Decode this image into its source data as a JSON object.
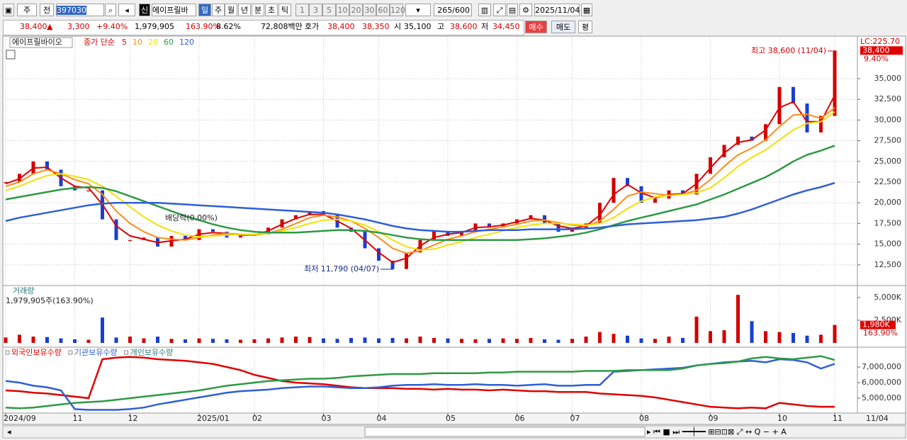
{
  "toolbar": {
    "market": "주",
    "mode": "전",
    "code": "397030",
    "name": "에이프릴바",
    "credit": "신",
    "periods": [
      "일",
      "주",
      "월",
      "년",
      "분",
      "초",
      "틱"
    ],
    "intervals": [
      "1",
      "3",
      "5",
      "10",
      "20",
      "30",
      "60",
      "120"
    ],
    "count": "265",
    "count_max": "/600",
    "date": "2025/11/04"
  },
  "quote": {
    "price": "38,400",
    "change": "3,300",
    "change_pct": "+9.40%",
    "volume": "1,979,905",
    "volume_ratio": "163.90%",
    "turnover": "8.62%",
    "trade_value": "72,808백만",
    "ask_label": "호가",
    "ask": "38,400",
    "bid": "38,350",
    "open_label": "시",
    "open": "35,100",
    "high_label": "고",
    "high": "38,600",
    "low_label": "저",
    "low": "34,450",
    "buy": "매수",
    "sell": "매도",
    "avg": "평"
  },
  "chart_data": [
    {
      "type": "line",
      "legend_title": "종가 단순",
      "grid": true,
      "categories": [
        "2024/09",
        null,
        null,
        null,
        null,
        "11",
        null,
        null,
        null,
        "12",
        null,
        null,
        null,
        null,
        "2025/01",
        null,
        null,
        null,
        "02",
        null,
        null,
        null,
        null,
        "03",
        null,
        null,
        null,
        "04",
        null,
        null,
        null,
        null,
        "05",
        null,
        null,
        null,
        null,
        "06",
        null,
        null,
        null,
        "07",
        null,
        null,
        null,
        null,
        "08",
        null,
        null,
        null,
        null,
        "09",
        null,
        null,
        null,
        null,
        "10",
        null,
        null,
        null,
        "11"
      ],
      "current_date": "11/04",
      "ylim": [
        10000,
        39540
      ],
      "yticks": [
        {
          "value": 12500,
          "label": "12,500"
        },
        {
          "value": 15000,
          "label": "15,000"
        },
        {
          "value": 17500,
          "label": "17,500"
        },
        {
          "value": 20000,
          "label": "20,000"
        },
        {
          "value": 22500,
          "label": "22,500"
        },
        {
          "value": 25000,
          "label": "25,000"
        },
        {
          "value": 27500,
          "label": "27,500"
        },
        {
          "value": 30000,
          "label": "30,000"
        },
        {
          "value": 32500,
          "label": "32,500"
        },
        {
          "value": 35000,
          "label": "35,000"
        }
      ],
      "series": [
        {
          "name": "에이프릴바이오",
          "kind": "candle",
          "color": "#d40000",
          "down_color": "#1a3fd0",
          "values": [
            22500,
            23500,
            25000,
            24000,
            22000,
            21500,
            21500,
            18000,
            15500,
            15500,
            15800,
            14700,
            16000,
            15500,
            16800,
            16500,
            15800,
            16000,
            16200,
            17000,
            18000,
            18500,
            19000,
            18500,
            17000,
            16500,
            14500,
            13000,
            12000,
            14000,
            15500,
            16500,
            16000,
            16500,
            17500,
            17000,
            17500,
            18000,
            18500,
            17500,
            16500,
            17000,
            17500,
            20000,
            23000,
            22000,
            20000,
            20500,
            21500,
            21000,
            23500,
            25500,
            27000,
            28000,
            27500,
            29500,
            34000,
            32000,
            28500,
            30500,
            38400
          ]
        },
        {
          "name": "5",
          "color": "#e00000",
          "values": [
            22300,
            22900,
            24200,
            24300,
            23000,
            22000,
            21800,
            19800,
            17200,
            16000,
            15600,
            15200,
            15400,
            15600,
            16200,
            16400,
            16300,
            16100,
            16100,
            16600,
            17400,
            18100,
            18600,
            18600,
            17800,
            16900,
            15500,
            14000,
            12800,
            13300,
            14800,
            15800,
            16200,
            16400,
            17000,
            17100,
            17300,
            17700,
            18100,
            17900,
            17200,
            16900,
            17200,
            18500,
            21000,
            22200,
            21200,
            20600,
            21000,
            21100,
            22300,
            24200,
            26000,
            27300,
            27600,
            28800,
            31500,
            32200,
            29800,
            29800,
            33000
          ]
        },
        {
          "name": "10",
          "color": "#ff8c1a",
          "values": [
            22000,
            22500,
            23500,
            24000,
            23500,
            22800,
            22300,
            21000,
            19000,
            17500,
            16500,
            15800,
            15600,
            15500,
            15800,
            16100,
            16300,
            16200,
            16100,
            16300,
            16800,
            17500,
            18200,
            18500,
            18300,
            17800,
            16900,
            15800,
            14500,
            13900,
            14200,
            14900,
            15600,
            16000,
            16500,
            16800,
            17100,
            17400,
            17800,
            17900,
            17600,
            17300,
            17200,
            17800,
            19200,
            20800,
            21300,
            21100,
            20900,
            21000,
            21500,
            22800,
            24400,
            25800,
            26600,
            27600,
            29200,
            30600,
            30700,
            30200,
            31500
          ]
        },
        {
          "name": "20",
          "color": "#f2e200",
          "values": [
            21500,
            22000,
            22700,
            23300,
            23500,
            23200,
            22800,
            22000,
            20800,
            19500,
            18300,
            17300,
            16600,
            16100,
            15900,
            16000,
            16100,
            16200,
            16200,
            16300,
            16600,
            17000,
            17500,
            17900,
            18000,
            17800,
            17300,
            16500,
            15500,
            14700,
            14300,
            14400,
            14900,
            15300,
            15800,
            16200,
            16600,
            17000,
            17300,
            17500,
            17500,
            17400,
            17300,
            17500,
            18200,
            19300,
            20200,
            20700,
            20900,
            21000,
            21200,
            21800,
            23000,
            24400,
            25500,
            26400,
            27600,
            28800,
            29600,
            29800,
            31000
          ]
        },
        {
          "name": "60",
          "color": "#2e9a44",
          "values": [
            20400,
            20700,
            21000,
            21300,
            21600,
            21800,
            21900,
            21800,
            21400,
            20800,
            20200,
            19600,
            19000,
            18400,
            17900,
            17400,
            17000,
            16700,
            16500,
            16400,
            16400,
            16400,
            16500,
            16600,
            16700,
            16700,
            16600,
            16400,
            16100,
            15800,
            15600,
            15500,
            15500,
            15500,
            15500,
            15500,
            15500,
            15500,
            15600,
            15700,
            15900,
            16100,
            16400,
            16800,
            17300,
            17800,
            18200,
            18600,
            19000,
            19400,
            19800,
            20400,
            21000,
            21700,
            22400,
            23100,
            24000,
            25000,
            25800,
            26300,
            26900
          ]
        },
        {
          "name": "120",
          "color": "#2f5fd6",
          "values": [
            17800,
            18200,
            18500,
            18800,
            19100,
            19400,
            19700,
            19900,
            20000,
            20000,
            20000,
            20000,
            19900,
            19800,
            19700,
            19600,
            19500,
            19400,
            19300,
            19200,
            19100,
            19000,
            18900,
            18800,
            18600,
            18300,
            18000,
            17600,
            17200,
            16900,
            16700,
            16600,
            16500,
            16500,
            16600,
            16700,
            16700,
            16700,
            16800,
            16800,
            16800,
            16800,
            16900,
            17000,
            17200,
            17400,
            17500,
            17600,
            17700,
            17800,
            17900,
            18100,
            18300,
            18700,
            19200,
            19800,
            20400,
            21000,
            21500,
            21900,
            22400
          ]
        }
      ],
      "annotations": {
        "high": "최고 38,600 (11/04)",
        "low": "최저 11,790 (04/07)",
        "dividend": "배당락(0.00%)"
      },
      "last_price": {
        "value": 38400,
        "label": "38,400"
      },
      "last_change": "9.40%",
      "lc_label": "LC:225.70"
    },
    {
      "type": "bar",
      "title": "거래량",
      "subtitle": "1,979,905주(163.90%)",
      "ylim": [
        -470,
        6170
      ],
      "yticks": [
        {
          "value": 2500,
          "label": "2,500K"
        },
        {
          "value": 5000,
          "label": "5,000K"
        }
      ],
      "values": [
        600,
        900,
        700,
        650,
        500,
        400,
        350,
        2800,
        600,
        700,
        500,
        700,
        450,
        400,
        500,
        450,
        400,
        350,
        400,
        500,
        600,
        700,
        650,
        500,
        450,
        550,
        600,
        500,
        550,
        500,
        700,
        550,
        500,
        450,
        400,
        450,
        500,
        450,
        550,
        400,
        350,
        450,
        700,
        1200,
        1000,
        800,
        500,
        450,
        700,
        550,
        2900,
        1300,
        1400,
        5300,
        2400,
        1300,
        1200,
        1100,
        800,
        900,
        1980
      ],
      "last_value": {
        "value": 1980,
        "label": "1,980K"
      },
      "last_ratio": "163.90%"
    },
    {
      "type": "line",
      "ylim": [
        4045000,
        8136000
      ],
      "yticks": [
        {
          "value": 5000000,
          "label": "5,000,000"
        },
        {
          "value": 6000000,
          "label": "6,000,000"
        },
        {
          "value": 7000000,
          "label": "7,000,000"
        }
      ],
      "series": [
        {
          "name": "외국인보유수량",
          "color": "#e00000",
          "values": [
            5500000,
            5450000,
            5350000,
            5300000,
            5200000,
            5100000,
            5000000,
            7500000,
            7600000,
            7650000,
            7600000,
            7500000,
            7450000,
            7400000,
            7300000,
            7200000,
            7000000,
            6800000,
            6500000,
            6300000,
            6100000,
            6000000,
            5950000,
            5900000,
            5800000,
            5700000,
            5650000,
            5650000,
            5650000,
            5600000,
            5600000,
            5550000,
            5600000,
            5550000,
            5550000,
            5500000,
            5550000,
            5500000,
            5450000,
            5450000,
            5400000,
            5400000,
            5400000,
            5300000,
            5250000,
            5200000,
            5150000,
            5050000,
            4900000,
            4750000,
            4600000,
            4450000,
            4400000,
            4350000,
            4400000,
            4350000,
            4700000,
            4600000,
            4500000,
            4450000,
            4450000
          ]
        },
        {
          "name": "기관보유수량",
          "color": "#2f5fd6",
          "values": [
            6100000,
            6000000,
            5800000,
            5700000,
            5500000,
            4300000,
            4250000,
            4250000,
            4250000,
            4300000,
            4400000,
            4600000,
            4750000,
            4900000,
            5050000,
            5200000,
            5350000,
            5450000,
            5500000,
            5550000,
            5650000,
            5700000,
            5750000,
            5750000,
            5700000,
            5650000,
            5650000,
            5700000,
            5800000,
            5850000,
            5850000,
            5900000,
            5850000,
            5850000,
            5900000,
            5850000,
            5850000,
            5800000,
            5850000,
            5900000,
            5800000,
            5800000,
            5850000,
            5850000,
            6700000,
            6750000,
            6800000,
            6850000,
            6900000,
            6950000,
            7100000,
            7200000,
            7300000,
            7350000,
            7400000,
            7300000,
            7500000,
            7450000,
            7300000,
            6900000,
            7200000
          ]
        },
        {
          "name": "개인보유수량",
          "color": "#2e9a44",
          "values": [
            4400000,
            4350000,
            4400000,
            4500000,
            4600000,
            4700000,
            4750000,
            4800000,
            4900000,
            5000000,
            5100000,
            5200000,
            5300000,
            5400000,
            5500000,
            5650000,
            5800000,
            5900000,
            6000000,
            6100000,
            6150000,
            6200000,
            6250000,
            6250000,
            6300000,
            6400000,
            6450000,
            6500000,
            6550000,
            6550000,
            6550000,
            6600000,
            6600000,
            6600000,
            6600000,
            6650000,
            6650000,
            6700000,
            6700000,
            6700000,
            6700000,
            6700000,
            6750000,
            6750000,
            6750000,
            6800000,
            6800000,
            6800000,
            6800000,
            6900000,
            7100000,
            7200000,
            7250000,
            7350000,
            7550000,
            7650000,
            7550000,
            7500000,
            7600000,
            7700000,
            7450000
          ]
        }
      ]
    }
  ]
}
